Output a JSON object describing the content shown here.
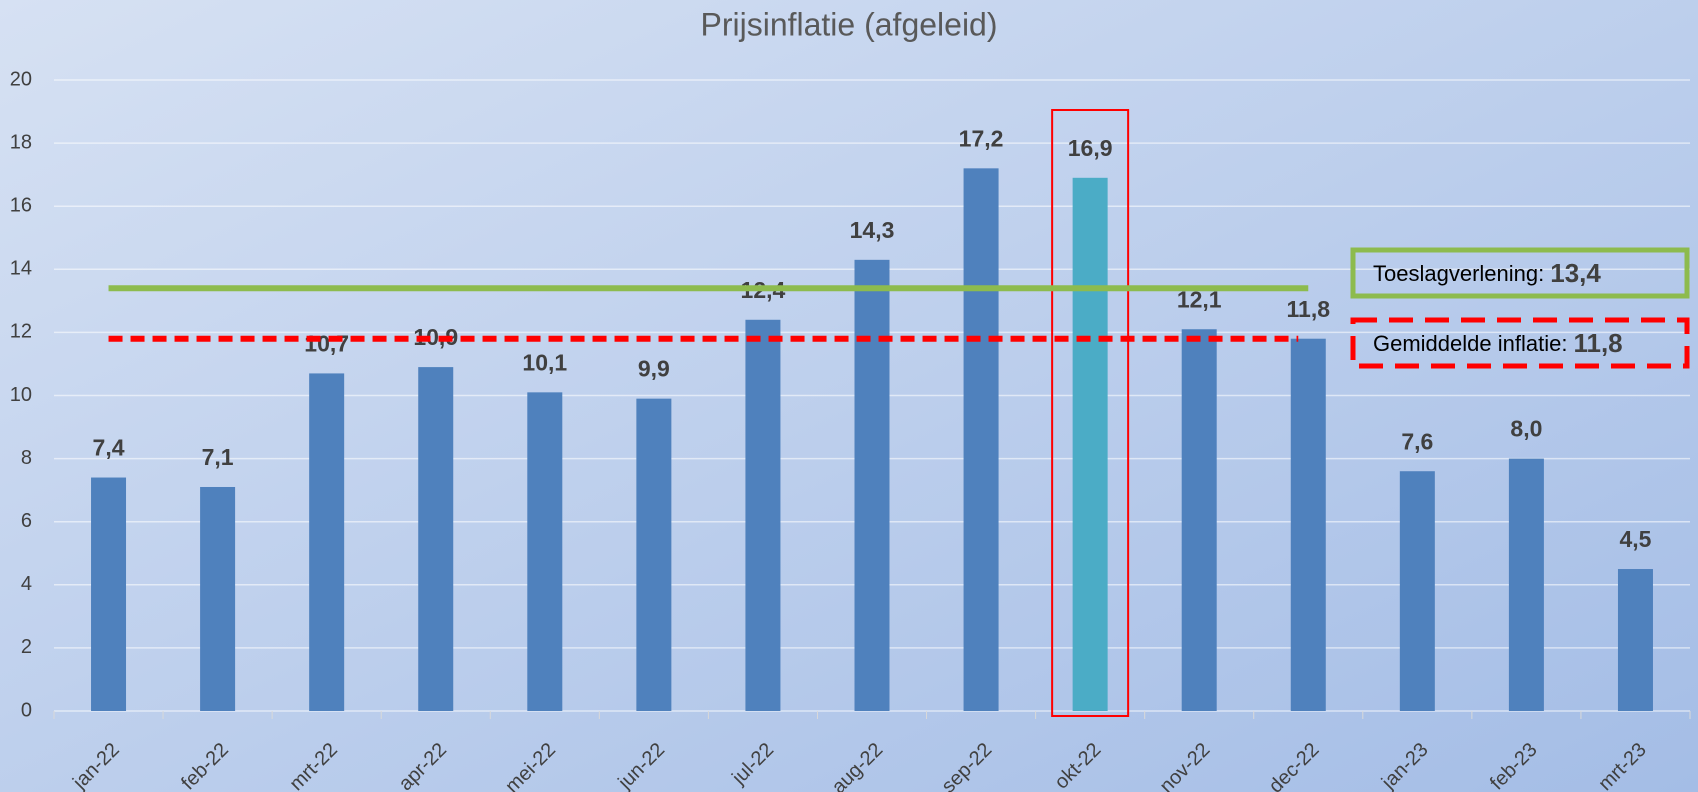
{
  "chart_data": {
    "type": "bar",
    "title": "Prijsinflatie (afgeleid)",
    "categories": [
      "jan-22",
      "feb-22",
      "mrt-22",
      "apr-22",
      "mei-22",
      "jun-22",
      "jul-22",
      "aug-22",
      "sep-22",
      "okt-22",
      "nov-22",
      "dec-22",
      "jan-23",
      "feb-23",
      "mrt-23"
    ],
    "values": [
      7.4,
      7.1,
      10.7,
      10.9,
      10.1,
      9.9,
      12.4,
      14.3,
      17.2,
      16.9,
      12.1,
      11.8,
      7.6,
      8.0,
      4.5
    ],
    "value_labels": [
      "7,4",
      "7,1",
      "10,7",
      "10,9",
      "10,1",
      "9,9",
      "12,4",
      "14,3",
      "17,2",
      "16,9",
      "12,1",
      "11,8",
      "7,6",
      "8,0",
      "4,5"
    ],
    "colors": [
      "#4f81bd",
      "#4f81bd",
      "#4f81bd",
      "#4f81bd",
      "#4f81bd",
      "#4f81bd",
      "#4f81bd",
      "#4f81bd",
      "#4f81bd",
      "#4bacc6",
      "#4f81bd",
      "#4f81bd",
      "#4f81bd",
      "#4f81bd",
      "#4f81bd"
    ],
    "ylim": [
      0,
      20
    ],
    "yticks": [
      0,
      2,
      4,
      6,
      8,
      10,
      12,
      14,
      16,
      18,
      20
    ],
    "grid": true,
    "reference_lines": [
      {
        "label": "Toeslagverlening:",
        "value": 13.4,
        "value_label": "13,4",
        "color": "#8dbb4e",
        "style": "solid"
      },
      {
        "label": "Gemiddelde inflatie:",
        "value": 11.8,
        "value_label": "11,8",
        "color": "#ff0000",
        "style": "dashed"
      }
    ]
  }
}
